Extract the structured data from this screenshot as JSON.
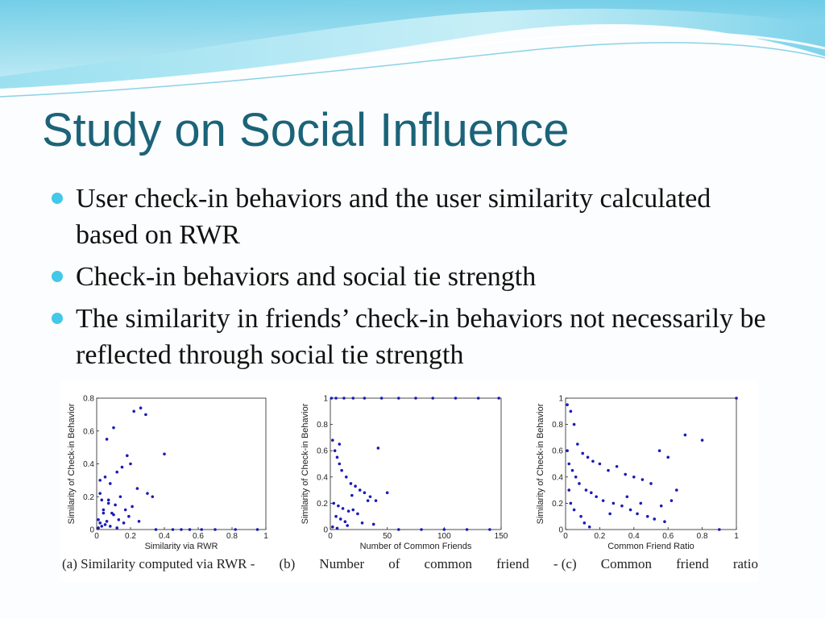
{
  "slide": {
    "title": "Study on Social Influence",
    "bullets": [
      "User check-in behaviors and the user similarity calculated based on RWR",
      "Check-in behaviors and social tie strength",
      "The similarity in friends’ check-in behaviors not necessarily be reflected through social tie strength"
    ],
    "colors": {
      "title": "#1b6378",
      "bullet": "#43c8e8",
      "wave": "#7fd3ea",
      "points": "#1a1ab8"
    }
  },
  "figure": {
    "caption_parts": [
      "(a) Similarity computed via RWR -",
      "(b)",
      "Number",
      "of",
      "common",
      "friend",
      "- (c)",
      "Common",
      "friend",
      "ratio"
    ]
  },
  "chart_data": [
    {
      "type": "scatter",
      "title": "",
      "xlabel": "Similarity via RWR",
      "ylabel": "Similarity of Check-in Behavior",
      "xlim": [
        0,
        1
      ],
      "ylim": [
        0,
        0.8
      ],
      "xticks": [
        "0",
        "0.2",
        "0.4",
        "0.6",
        "0.8",
        "1"
      ],
      "yticks": [
        "0",
        "0.2",
        "0.4",
        "0.6",
        "0.8"
      ],
      "x": [
        0.22,
        0.26,
        0.29,
        0.1,
        0.06,
        0.18,
        0.4,
        0.15,
        0.2,
        0.12,
        0.05,
        0.33,
        0.02,
        0.08,
        0.24,
        0.3,
        0.14,
        0.03,
        0.07,
        0.11,
        0.17,
        0.04,
        0.09,
        0.19,
        0.01,
        0.13,
        0.06,
        0.02,
        0.16,
        0.25,
        0.05,
        0.03,
        0.08,
        0.01,
        0.12,
        0.04,
        0.21,
        0.02,
        0.07,
        0.1,
        0.35,
        0.45,
        0.55,
        0.7,
        0.82,
        0.95,
        0.5,
        0.62
      ],
      "y": [
        0.72,
        0.74,
        0.7,
        0.62,
        0.55,
        0.45,
        0.46,
        0.38,
        0.4,
        0.35,
        0.32,
        0.2,
        0.3,
        0.28,
        0.25,
        0.22,
        0.2,
        0.18,
        0.16,
        0.15,
        0.12,
        0.1,
        0.1,
        0.08,
        0.06,
        0.06,
        0.05,
        0.04,
        0.04,
        0.05,
        0.03,
        0.02,
        0.02,
        0.01,
        0.01,
        0.12,
        0.14,
        0.22,
        0.18,
        0.09,
        0,
        0,
        0,
        0,
        0,
        0,
        0,
        0
      ]
    },
    {
      "type": "scatter",
      "title": "",
      "xlabel": "Number of Common Friends",
      "ylabel": "Similarity of Check-in Behavior",
      "xlim": [
        0,
        150
      ],
      "ylim": [
        0,
        1
      ],
      "xticks": [
        "0",
        "50",
        "100",
        "150"
      ],
      "yticks": [
        "0",
        "0.2",
        "0.4",
        "0.6",
        "0.8",
        "1"
      ],
      "x": [
        1,
        5,
        12,
        20,
        30,
        45,
        60,
        75,
        90,
        110,
        130,
        148,
        2,
        4,
        6,
        8,
        10,
        14,
        18,
        22,
        26,
        30,
        35,
        40,
        50,
        3,
        7,
        11,
        16,
        24,
        5,
        9,
        13,
        28,
        38,
        2,
        6,
        15,
        20,
        33,
        60,
        80,
        100,
        120,
        140,
        8,
        19,
        42
      ],
      "y": [
        1,
        1,
        1,
        1,
        1,
        1,
        1,
        1,
        1,
        1,
        1,
        1,
        0.68,
        0.6,
        0.55,
        0.5,
        0.45,
        0.4,
        0.35,
        0.33,
        0.3,
        0.28,
        0.25,
        0.22,
        0.28,
        0.2,
        0.18,
        0.16,
        0.14,
        0.12,
        0.1,
        0.08,
        0.06,
        0.05,
        0.04,
        0.02,
        0.01,
        0.03,
        0.15,
        0.22,
        0,
        0,
        0,
        0,
        0,
        0.65,
        0.26,
        0.62
      ]
    },
    {
      "type": "scatter",
      "title": "",
      "xlabel": "Common Friend Ratio",
      "ylabel": "Similarity of Check-in Behavior",
      "xlim": [
        0,
        1
      ],
      "ylim": [
        0,
        1
      ],
      "xticks": [
        "0",
        "0.2",
        "0.4",
        "0.6",
        "0.8",
        "1"
      ],
      "yticks": [
        "0",
        "0.2",
        "0.4",
        "0.6",
        "0.8",
        "1"
      ],
      "x": [
        0.01,
        0.03,
        0.05,
        0.07,
        0.1,
        0.13,
        0.16,
        0.2,
        0.25,
        0.3,
        0.35,
        0.4,
        0.45,
        0.5,
        0.55,
        0.6,
        0.65,
        0.02,
        0.04,
        0.06,
        0.08,
        0.12,
        0.15,
        0.18,
        0.22,
        0.28,
        0.33,
        0.38,
        0.42,
        0.48,
        0.52,
        0.58,
        0.01,
        0.02,
        0.03,
        0.05,
        0.09,
        0.11,
        0.14,
        0.26,
        0.36,
        0.44,
        0.56,
        0.62,
        0.7,
        0.8,
        0.9,
        1.0
      ],
      "y": [
        0.95,
        0.9,
        0.8,
        0.65,
        0.58,
        0.55,
        0.52,
        0.5,
        0.45,
        0.48,
        0.42,
        0.4,
        0.38,
        0.35,
        0.6,
        0.55,
        0.3,
        0.5,
        0.45,
        0.4,
        0.35,
        0.3,
        0.28,
        0.25,
        0.22,
        0.2,
        0.18,
        0.15,
        0.12,
        0.1,
        0.08,
        0.06,
        0.6,
        0.3,
        0.2,
        0.15,
        0.1,
        0.05,
        0.02,
        0.12,
        0.25,
        0.2,
        0.18,
        0.22,
        0.72,
        0.68,
        0.0,
        1.0
      ]
    }
  ]
}
